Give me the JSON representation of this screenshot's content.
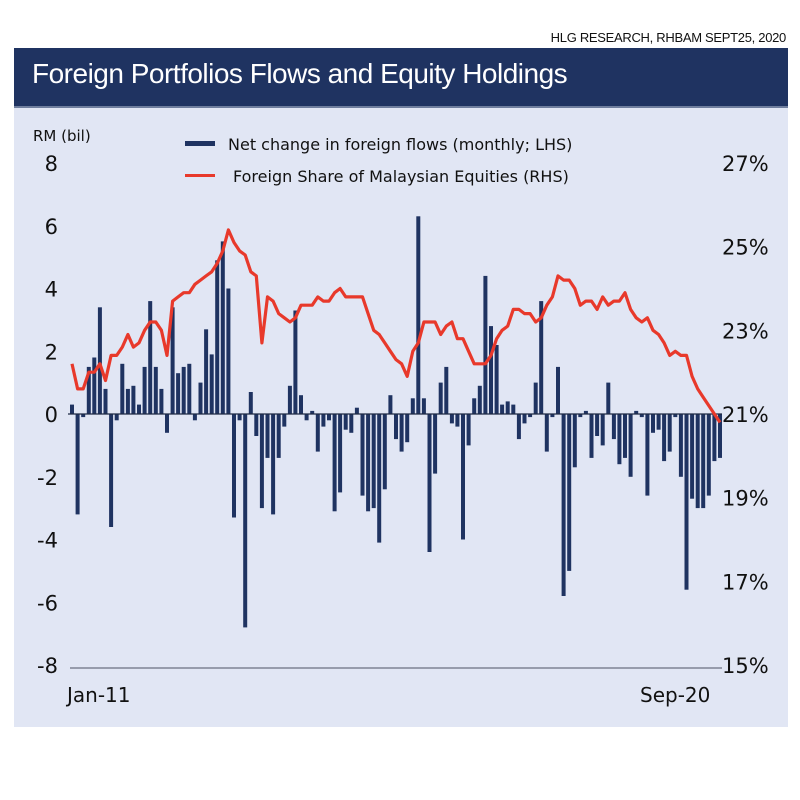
{
  "source": "HLG RESEARCH, RHBAM SEPT25, 2020",
  "header": {
    "title": "Foreign Portfolios Flows and Equity Holdings"
  },
  "colors": {
    "title_bar": "#1f3361",
    "panel": "#e1e6f4",
    "bar": "#1f3361",
    "line": "#e8392b",
    "axis": "#6b7080"
  },
  "chart_data": {
    "type": "bar+line",
    "title": "Foreign Portfolios Flows and Equity Holdings",
    "ylabel_left": "RM (bil)",
    "x_start_label": "Jan-11",
    "x_end_label": "Sep-20",
    "xtick_labels": [
      "Jan-11",
      "Sep-20"
    ],
    "ylim_left": [
      -8,
      8
    ],
    "yticks_left": [
      "8",
      "6",
      "4",
      "2",
      "0",
      "-2",
      "-4",
      "-6",
      "-8"
    ],
    "ytick_values_left": [
      8,
      6,
      4,
      2,
      0,
      -2,
      -4,
      -6,
      -8
    ],
    "ylim_right": [
      15,
      27
    ],
    "yticks_right": [
      "27%",
      "25%",
      "23%",
      "21%",
      "19%",
      "17%",
      "15%"
    ],
    "ytick_values_right": [
      27,
      25,
      23,
      21,
      19,
      17,
      15
    ],
    "legend": [
      {
        "label": "Net change in foreign flows (monthly; LHS)",
        "type": "bar"
      },
      {
        "label": "Foreign Share of Malaysian Equities (RHS)",
        "type": "line"
      }
    ],
    "legend_position": "top-center",
    "series": [
      {
        "name": "Net change in foreign flows (monthly; LHS)",
        "axis": "left",
        "type": "bar",
        "values": [
          0.3,
          -3.2,
          -0.1,
          1.5,
          1.8,
          3.4,
          0.8,
          -3.6,
          -0.2,
          1.6,
          0.8,
          0.9,
          0.3,
          1.5,
          3.6,
          1.5,
          0.8,
          -0.6,
          3.4,
          1.3,
          1.5,
          1.6,
          -0.2,
          1.0,
          2.7,
          1.9,
          4.9,
          5.5,
          4.0,
          -3.3,
          -0.2,
          -6.8,
          0.7,
          -0.7,
          -3.0,
          -1.4,
          -3.2,
          -1.4,
          -0.4,
          0.9,
          3.3,
          0.6,
          -0.2,
          0.1,
          -1.2,
          -0.4,
          -0.2,
          -3.1,
          -2.5,
          -0.5,
          -0.6,
          0.2,
          -2.6,
          -3.1,
          -3.0,
          -4.1,
          -2.4,
          0.6,
          -0.8,
          -1.2,
          -0.9,
          0.5,
          6.3,
          0.5,
          -4.4,
          -1.9,
          1.0,
          1.5,
          -0.3,
          -0.4,
          -4.0,
          -1.0,
          0.5,
          0.9,
          4.4,
          2.8,
          2.2,
          0.3,
          0.4,
          0.3,
          -0.8,
          -0.3,
          -0.1,
          1.0,
          3.6,
          -1.2,
          -0.1,
          1.5,
          -5.8,
          -5.0,
          -1.7,
          -0.1,
          0.1,
          -1.4,
          -0.7,
          -1.0,
          1.0,
          -0.8,
          -1.6,
          -1.4,
          -2.0,
          0.1,
          -0.1,
          -2.6,
          -0.6,
          -0.5,
          -1.5,
          -1.2,
          -0.1,
          -2.0,
          -5.6,
          -2.7,
          -3.0,
          -3.0,
          -2.6,
          -1.5,
          -1.4
        ]
      },
      {
        "name": "Foreign Share of Malaysian Equities (RHS)",
        "axis": "right",
        "type": "line",
        "unit": "%",
        "values": [
          22.2,
          21.6,
          21.6,
          22.0,
          22.0,
          22.2,
          21.8,
          22.4,
          22.4,
          22.6,
          22.9,
          22.6,
          22.7,
          23.0,
          23.2,
          23.2,
          23.0,
          22.4,
          23.7,
          23.8,
          23.9,
          23.9,
          24.1,
          24.2,
          24.3,
          24.4,
          24.6,
          24.9,
          25.4,
          25.1,
          24.9,
          24.8,
          24.4,
          24.3,
          22.7,
          23.8,
          23.7,
          23.4,
          23.3,
          23.2,
          23.3,
          23.6,
          23.6,
          23.6,
          23.8,
          23.7,
          23.7,
          23.9,
          24.0,
          23.8,
          23.8,
          23.8,
          23.8,
          23.4,
          23.0,
          22.9,
          22.7,
          22.5,
          22.3,
          22.2,
          21.9,
          22.5,
          22.7,
          23.2,
          23.2,
          23.2,
          22.9,
          23.1,
          23.2,
          22.8,
          22.8,
          22.5,
          22.2,
          22.2,
          22.2,
          22.4,
          22.8,
          23.0,
          23.1,
          23.5,
          23.5,
          23.4,
          23.4,
          23.2,
          23.3,
          23.6,
          23.8,
          24.3,
          24.2,
          24.2,
          24.0,
          23.6,
          23.7,
          23.7,
          23.5,
          23.8,
          23.6,
          23.7,
          23.7,
          23.9,
          23.5,
          23.3,
          23.2,
          23.3,
          23.0,
          22.9,
          22.7,
          22.4,
          22.5,
          22.4,
          22.4,
          21.9,
          21.6,
          21.4,
          21.2,
          21.0,
          20.8
        ]
      }
    ],
    "grid": false
  }
}
